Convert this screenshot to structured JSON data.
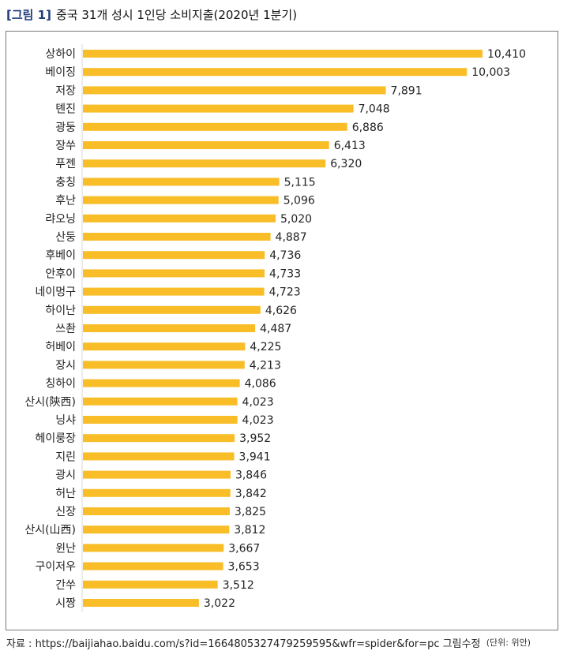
{
  "figure": {
    "number": "[그림 1]",
    "title": "중국 31개 성시 1인당 소비지출(2020년 1분기)"
  },
  "unit_note": "(단위: 위안)",
  "source": "자료 : https://baijiahao.baidu.com/s?id=1664805327479259595&wfr=spider&for=pc 그림수정",
  "colors": {
    "bar": "#f8bd27",
    "title_accent": "#1f3d7a"
  },
  "chart_data": {
    "type": "bar",
    "orientation": "horizontal",
    "title": "중국 31개 성시 1인당 소비지출(2020년 1분기)",
    "unit": "위안",
    "xlabel": "",
    "ylabel": "",
    "grid": false,
    "xlim": [
      0,
      10410
    ],
    "categories": [
      "상하이",
      "베이징",
      "저장",
      "톈진",
      "광둥",
      "장쑤",
      "푸젠",
      "충칭",
      "후난",
      "랴오닝",
      "산둥",
      "후베이",
      "안후이",
      "네이멍구",
      "하이난",
      "쓰촨",
      "허베이",
      "장시",
      "칭하이",
      "산시(陝西)",
      "닝샤",
      "헤이룽장",
      "지린",
      "광시",
      "허난",
      "신장",
      "산시(山西)",
      "윈난",
      "구이저우",
      "간쑤",
      "시짱"
    ],
    "values": [
      10410,
      10003,
      7891,
      7048,
      6886,
      6413,
      6320,
      5115,
      5096,
      5020,
      4887,
      4736,
      4733,
      4723,
      4626,
      4487,
      4225,
      4213,
      4086,
      4023,
      4023,
      3952,
      3941,
      3846,
      3842,
      3825,
      3812,
      3667,
      3653,
      3512,
      3022
    ],
    "value_labels": [
      "10,410",
      "10,003",
      "7,891",
      "7,048",
      "6,886",
      "6,413",
      "6,320",
      "5,115",
      "5,096",
      "5,020",
      "4,887",
      "4,736",
      "4,733",
      "4,723",
      "4,626",
      "4,487",
      "4,225",
      "4,213",
      "4,086",
      "4,023",
      "4,023",
      "3,952",
      "3,941",
      "3,846",
      "3,842",
      "3,825",
      "3,812",
      "3,667",
      "3,653",
      "3,512",
      "3,022"
    ]
  }
}
